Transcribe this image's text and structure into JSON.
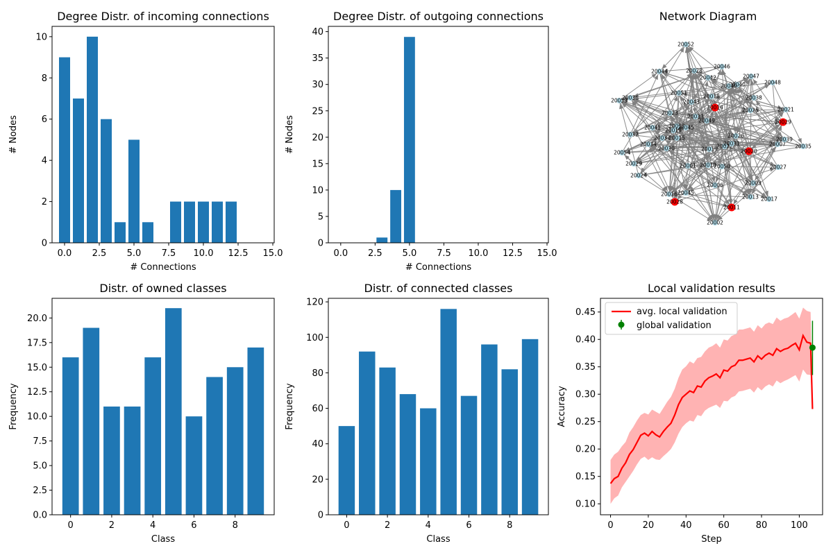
{
  "chart_data": [
    {
      "type": "bar",
      "title": "Degree Distr. of incoming connections",
      "xlabel": "# Connections",
      "ylabel": "# Nodes",
      "x": [
        0,
        1,
        2,
        3,
        4,
        5,
        6,
        8,
        9,
        10,
        11,
        12
      ],
      "values": [
        9,
        7,
        10,
        6,
        1,
        5,
        1,
        2,
        2,
        2,
        2,
        2
      ],
      "xlim": [
        -0.9,
        15.1
      ],
      "ylim": [
        0,
        10.5
      ],
      "xticks": [
        0.0,
        2.5,
        5.0,
        7.5,
        10.0,
        12.5,
        15.0
      ],
      "xtick_labels": [
        "0.0",
        "2.5",
        "5.0",
        "7.5",
        "10.0",
        "12.5",
        "15.0"
      ],
      "yticks": [
        0,
        2,
        4,
        6,
        8,
        10
      ],
      "ytick_labels": [
        "0",
        "2",
        "4",
        "6",
        "8",
        "10"
      ],
      "color": "#1f77b4"
    },
    {
      "type": "bar",
      "title": "Degree Distr. of outgoing connections",
      "xlabel": "# Connections",
      "ylabel": "# Nodes",
      "x": [
        3,
        4,
        5
      ],
      "values": [
        1,
        10,
        39
      ],
      "xlim": [
        -0.9,
        15.1
      ],
      "ylim": [
        0,
        41
      ],
      "xticks": [
        0.0,
        2.5,
        5.0,
        7.5,
        10.0,
        12.5,
        15.0
      ],
      "xtick_labels": [
        "0.0",
        "2.5",
        "5.0",
        "7.5",
        "10.0",
        "12.5",
        "15.0"
      ],
      "yticks": [
        0,
        5,
        10,
        15,
        20,
        25,
        30,
        35,
        40
      ],
      "ytick_labels": [
        "0",
        "5",
        "10",
        "15",
        "20",
        "25",
        "30",
        "35",
        "40"
      ],
      "color": "#1f77b4"
    },
    {
      "type": "network",
      "title": "Network Diagram",
      "edge_color": "#808080",
      "node_color": "#add8e6",
      "highlight_color": "#ff0000",
      "nodes": [
        "20001",
        "20002",
        "20003",
        "20006",
        "20007",
        "20008",
        "20010",
        "20011",
        "20012",
        "20013",
        "20014",
        "20015",
        "20016",
        "20017",
        "20018",
        "20019",
        "20020",
        "20021",
        "20022",
        "20023",
        "20024",
        "20025",
        "20026",
        "20027",
        "20028",
        "20029",
        "20030",
        "20031",
        "20032",
        "20033",
        "20034",
        "20035",
        "20036",
        "20037",
        "20038",
        "20039",
        "20040",
        "20041",
        "20042",
        "20043",
        "20044",
        "20045",
        "20046",
        "20047",
        "20048",
        "20049",
        "20050",
        "20051",
        "20052",
        "20053",
        "20054"
      ],
      "highlighted_nodes": [
        "20014",
        "20029",
        "20020",
        "20028",
        "20011"
      ]
    },
    {
      "type": "bar",
      "title": "Distr. of owned classes",
      "xlabel": "Class",
      "ylabel": "Frequency",
      "categories": [
        0,
        1,
        2,
        3,
        4,
        5,
        6,
        7,
        8,
        9
      ],
      "values": [
        16,
        19,
        11,
        11,
        16,
        21,
        10,
        14,
        15,
        17
      ],
      "xlim": [
        -0.9,
        9.9
      ],
      "ylim": [
        0,
        22
      ],
      "xticks": [
        0,
        2,
        4,
        6,
        8
      ],
      "xtick_labels": [
        "0",
        "2",
        "4",
        "6",
        "8"
      ],
      "yticks": [
        0,
        2.5,
        5,
        7.5,
        10,
        12.5,
        15,
        17.5,
        20
      ],
      "ytick_labels": [
        "0.0",
        "2.5",
        "5.0",
        "7.5",
        "10.0",
        "12.5",
        "15.0",
        "17.5",
        "20.0"
      ],
      "color": "#1f77b4"
    },
    {
      "type": "bar",
      "title": "Distr. of connected classes",
      "xlabel": "Class",
      "ylabel": "Frequency",
      "categories": [
        0,
        1,
        2,
        3,
        4,
        5,
        6,
        7,
        8,
        9
      ],
      "values": [
        50,
        92,
        83,
        68,
        60,
        116,
        67,
        96,
        82,
        99
      ],
      "xlim": [
        -0.9,
        9.9
      ],
      "ylim": [
        0,
        122
      ],
      "xticks": [
        0,
        2,
        4,
        6,
        8
      ],
      "xtick_labels": [
        "0",
        "2",
        "4",
        "6",
        "8"
      ],
      "yticks": [
        0,
        20,
        40,
        60,
        80,
        100,
        120
      ],
      "ytick_labels": [
        "0",
        "20",
        "40",
        "60",
        "80",
        "100",
        "120"
      ],
      "color": "#1f77b4"
    },
    {
      "type": "line",
      "title": "Local validation results",
      "xlabel": "Step",
      "ylabel": "Accuracy",
      "xlim": [
        -5.35,
        112.35
      ],
      "ylim": [
        0.08,
        0.475
      ],
      "xticks": [
        0,
        20,
        40,
        60,
        80,
        100
      ],
      "xtick_labels": [
        "0",
        "20",
        "40",
        "60",
        "80",
        "100"
      ],
      "yticks": [
        0.1,
        0.15,
        0.2,
        0.25,
        0.3,
        0.35,
        0.4,
        0.45
      ],
      "ytick_labels": [
        "0.10",
        "0.15",
        "0.20",
        "0.25",
        "0.30",
        "0.35",
        "0.40",
        "0.45"
      ],
      "legend": "upper-left",
      "series": [
        {
          "name": "avg. local validation",
          "color": "#ff0000",
          "band_color": "#ff9999",
          "x": [
            0,
            2,
            4,
            6,
            8,
            10,
            12,
            14,
            16,
            18,
            20,
            22,
            24,
            26,
            28,
            30,
            32,
            34,
            36,
            38,
            40,
            42,
            44,
            46,
            48,
            50,
            52,
            54,
            56,
            58,
            60,
            62,
            64,
            66,
            68,
            70,
            72,
            74,
            76,
            78,
            80,
            82,
            84,
            86,
            88,
            90,
            92,
            94,
            96,
            98,
            100,
            102,
            104,
            106,
            107
          ],
          "y": [
            0.137,
            0.146,
            0.15,
            0.165,
            0.175,
            0.19,
            0.199,
            0.212,
            0.225,
            0.229,
            0.224,
            0.232,
            0.226,
            0.222,
            0.232,
            0.24,
            0.247,
            0.262,
            0.281,
            0.294,
            0.3,
            0.306,
            0.303,
            0.315,
            0.313,
            0.324,
            0.33,
            0.333,
            0.337,
            0.33,
            0.344,
            0.342,
            0.35,
            0.353,
            0.362,
            0.362,
            0.364,
            0.366,
            0.359,
            0.37,
            0.364,
            0.371,
            0.375,
            0.371,
            0.383,
            0.378,
            0.382,
            0.384,
            0.389,
            0.393,
            0.381,
            0.407,
            0.395,
            0.393,
            0.273
          ],
          "band_low": [
            0.1,
            0.11,
            0.115,
            0.13,
            0.14,
            0.15,
            0.16,
            0.172,
            0.182,
            0.186,
            0.18,
            0.185,
            0.181,
            0.18,
            0.187,
            0.193,
            0.2,
            0.212,
            0.228,
            0.24,
            0.247,
            0.252,
            0.25,
            0.262,
            0.26,
            0.27,
            0.275,
            0.278,
            0.281,
            0.275,
            0.288,
            0.287,
            0.294,
            0.297,
            0.305,
            0.306,
            0.308,
            0.31,
            0.303,
            0.313,
            0.307,
            0.314,
            0.318,
            0.314,
            0.325,
            0.32,
            0.324,
            0.327,
            0.331,
            0.335,
            0.323,
            0.345,
            0.336,
            0.335,
            0.27
          ],
          "band_high": [
            0.18,
            0.19,
            0.195,
            0.205,
            0.213,
            0.23,
            0.24,
            0.252,
            0.262,
            0.266,
            0.263,
            0.272,
            0.268,
            0.264,
            0.275,
            0.286,
            0.295,
            0.31,
            0.33,
            0.345,
            0.351,
            0.36,
            0.356,
            0.366,
            0.368,
            0.378,
            0.385,
            0.388,
            0.393,
            0.385,
            0.4,
            0.398,
            0.406,
            0.409,
            0.418,
            0.418,
            0.42,
            0.422,
            0.414,
            0.426,
            0.42,
            0.428,
            0.431,
            0.428,
            0.44,
            0.434,
            0.438,
            0.44,
            0.445,
            0.45,
            0.438,
            0.458,
            0.452,
            0.45,
            0.28
          ]
        },
        {
          "name": "global validation",
          "color": "#008000",
          "x": [
            107
          ],
          "y": [
            0.385
          ],
          "err_low": [
            0.335
          ],
          "err_high": [
            0.434
          ]
        }
      ]
    }
  ]
}
